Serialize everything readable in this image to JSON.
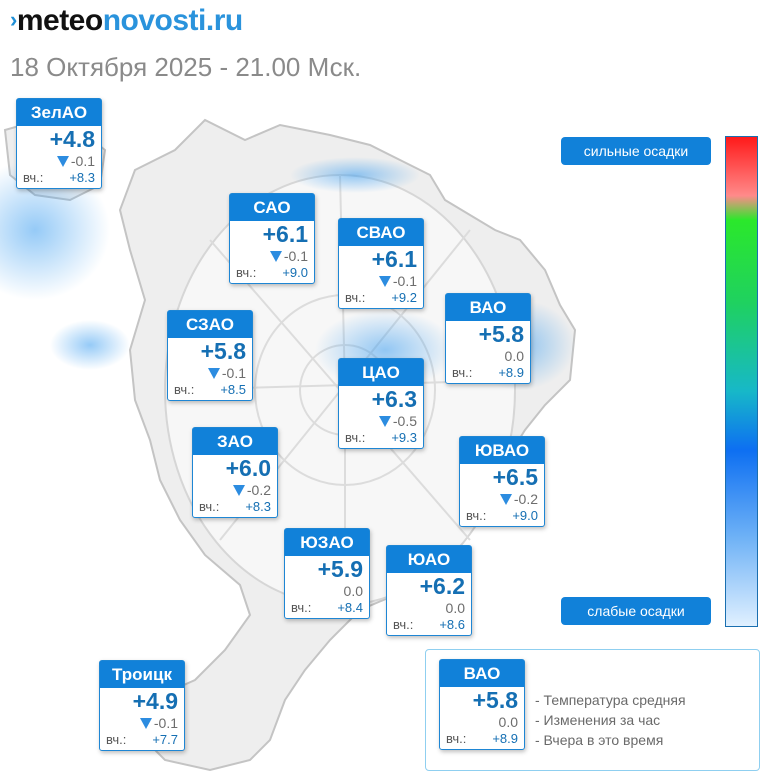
{
  "header": {
    "logo_prefix": "meteo",
    "logo_suffix": "novosti.ru",
    "subtitle": "18 Октября 2025 - 21.00 Мск."
  },
  "colors": {
    "card_header": "#1181d9",
    "card_border": "#1e86d4",
    "temperature_text": "#156fb3",
    "change_arrow": "#2c8ce0",
    "precip_blob": "#4aa8f0"
  },
  "districts": [
    {
      "name": "ЗелАО",
      "temp": "+4.8",
      "change": "-0.1",
      "change_dir": "down",
      "yesterday_label": "вч.:",
      "yesterday": "+8.3"
    },
    {
      "name": "САО",
      "temp": "+6.1",
      "change": "-0.1",
      "change_dir": "down",
      "yesterday_label": "вч.:",
      "yesterday": "+9.0"
    },
    {
      "name": "СВАО",
      "temp": "+6.1",
      "change": "-0.1",
      "change_dir": "down",
      "yesterday_label": "вч.:",
      "yesterday": "+9.2"
    },
    {
      "name": "СЗАО",
      "temp": "+5.8",
      "change": "-0.1",
      "change_dir": "down",
      "yesterday_label": "вч.:",
      "yesterday": "+8.5"
    },
    {
      "name": "ВАО",
      "temp": "+5.8",
      "change": "0.0",
      "change_dir": "none",
      "yesterday_label": "вч.:",
      "yesterday": "+8.9"
    },
    {
      "name": "ЦАО",
      "temp": "+6.3",
      "change": "-0.5",
      "change_dir": "down",
      "yesterday_label": "вч.:",
      "yesterday": "+9.3"
    },
    {
      "name": "ЗАО",
      "temp": "+6.0",
      "change": "-0.2",
      "change_dir": "down",
      "yesterday_label": "вч.:",
      "yesterday": "+8.3"
    },
    {
      "name": "ЮВАО",
      "temp": "+6.5",
      "change": "-0.2",
      "change_dir": "down",
      "yesterday_label": "вч.:",
      "yesterday": "+9.0"
    },
    {
      "name": "ЮЗАО",
      "temp": "+5.9",
      "change": "0.0",
      "change_dir": "none",
      "yesterday_label": "вч.:",
      "yesterday": "+8.4"
    },
    {
      "name": "ЮАО",
      "temp": "+6.2",
      "change": "0.0",
      "change_dir": "none",
      "yesterday_label": "вч.:",
      "yesterday": "+8.6"
    },
    {
      "name": "Троицк",
      "temp": "+4.9",
      "change": "-0.1",
      "change_dir": "down",
      "yesterday_label": "вч.:",
      "yesterday": "+7.7"
    }
  ],
  "precip_scale": {
    "high_label": "сильные осадки",
    "low_label": "слабые осадки"
  },
  "legend": {
    "sample": {
      "name": "ВАО",
      "temp": "+5.8",
      "change": "0.0",
      "change_dir": "none",
      "yesterday_label": "вч.:",
      "yesterday": "+8.9"
    },
    "lines": [
      "- Температура средняя",
      "- Изменения за час",
      "- Вчера в это время"
    ]
  }
}
